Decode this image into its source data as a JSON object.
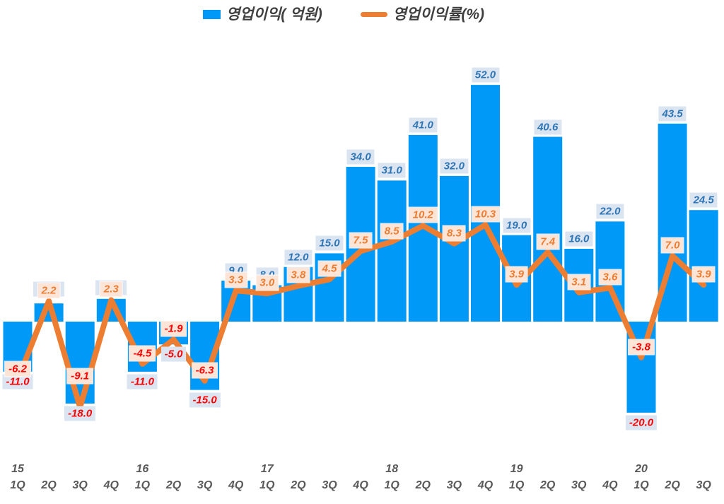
{
  "legend": {
    "position": "top-center",
    "items": [
      {
        "label": "영업이익( 억원)",
        "swatch": "bar-swatch"
      },
      {
        "label": "영업이익률(%)",
        "swatch": "line-swatch"
      }
    ]
  },
  "chart_data": {
    "type": "combo-bar-line",
    "title": "",
    "categories": [
      "15-1Q",
      "15-2Q",
      "15-3Q",
      "15-4Q",
      "16-1Q",
      "16-2Q",
      "16-3Q",
      "16-4Q",
      "17-1Q",
      "17-2Q",
      "17-3Q",
      "17-4Q",
      "18-1Q",
      "18-2Q",
      "18-3Q",
      "18-4Q",
      "19-1Q",
      "19-2Q",
      "19-3Q",
      "19-4Q",
      "20-1Q",
      "20-2Q",
      "20-3Q"
    ],
    "series": [
      {
        "name": "영업이익( 억원)",
        "type": "bar",
        "values": [
          -11.0,
          4.0,
          -18.0,
          5.0,
          -11.0,
          -5.0,
          -15.0,
          9.0,
          8.0,
          12.0,
          15.0,
          34.0,
          31.0,
          41.0,
          32.0,
          52.0,
          19.0,
          40.6,
          16.0,
          22.0,
          -20.0,
          43.5,
          24.5
        ],
        "value_labels": [
          "-11.0",
          "",
          "-18.0",
          "",
          "-11.0",
          "-5.0",
          "-15.0",
          "9.0",
          "8.0",
          "12.0",
          "15.0",
          "34.0",
          "31.0",
          "41.0",
          "32.0",
          "52.0",
          "19.0",
          "40.6",
          "16.0",
          "22.0",
          "-20.0",
          "43.5",
          "24.5"
        ]
      },
      {
        "name": "영업이익률(%)",
        "type": "line",
        "values": [
          -6.2,
          2.2,
          -9.1,
          2.3,
          -4.5,
          -1.9,
          -6.3,
          3.3,
          3.0,
          3.8,
          4.5,
          7.5,
          8.5,
          10.2,
          8.3,
          10.3,
          3.9,
          7.4,
          3.1,
          3.6,
          -3.8,
          7.0,
          3.9
        ],
        "value_labels": [
          "-6.2",
          "2.2",
          "-9.1",
          "2.3",
          "-4.5",
          "-1.9",
          "-6.3",
          "3.3",
          "3.0",
          "3.8",
          "4.5",
          "7.5",
          "8.5",
          "10.2",
          "8.3",
          "10.3",
          "3.9",
          "7.4",
          "3.1",
          "3.6",
          "-3.8",
          "7.0",
          "3.9"
        ]
      }
    ],
    "colors": {
      "bar": "#0099f8",
      "line": "#ed7d31",
      "bar_label_bg": "#dbe5f2",
      "bar_label_text": "#2e75b6",
      "line_label_bg": "#fce4d6",
      "line_label_text": "#ed7d31",
      "negative_label_text": "#ff0000",
      "axis_text": "#595959",
      "legend_text": "#404040"
    },
    "layout_hints": {
      "legend_position": "top-center",
      "gridlines": false,
      "value_axis_visible": false,
      "category_axis": "quarter labels for every bar, year label shown above each 1Q",
      "bar_axis_range_approx": [
        -30,
        60
      ],
      "line_axis_range_approx": [
        -15,
        25
      ],
      "hidden_bar_labels": [
        "15-2Q",
        "15-4Q"
      ]
    }
  }
}
